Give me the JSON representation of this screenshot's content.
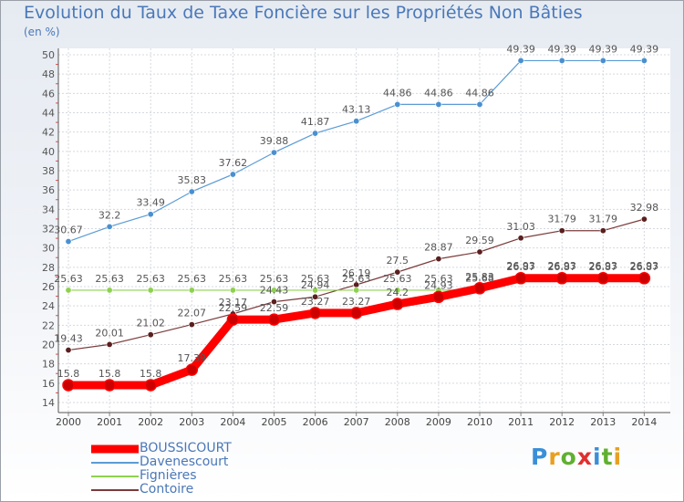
{
  "title": "Evolution du Taux de Taxe Foncière sur les Propriétés Non Bâties",
  "unit_label": "(en %)",
  "logo_text": "Proxiti",
  "chart_data": {
    "type": "line",
    "x": [
      "2000",
      "2001",
      "2002",
      "2003",
      "2004",
      "2005",
      "2006",
      "2007",
      "2008",
      "2009",
      "2010",
      "2011",
      "2012",
      "2013",
      "2014"
    ],
    "ylim": [
      14,
      50
    ],
    "y_ticks": [
      "14",
      "16",
      "18",
      "20",
      "22",
      "24",
      "26",
      "28",
      "30",
      "32",
      "34",
      "36",
      "38",
      "40",
      "42",
      "44",
      "46",
      "48",
      "50"
    ],
    "grid": true,
    "legend_position": "bottom-left",
    "series": [
      {
        "name": "Davenescourt",
        "color": "#5b9bd5",
        "point_color": "#4a90d0",
        "values": [
          30.67,
          32.2,
          33.49,
          35.83,
          37.62,
          39.88,
          41.87,
          43.13,
          44.86,
          44.86,
          44.86,
          49.39,
          49.39,
          49.39,
          49.39
        ],
        "labels": [
          "30.67",
          "32.2",
          "33.49",
          "35.83",
          "37.62",
          "39.88",
          "41.87",
          "43.13",
          "44.86",
          "44.86",
          "44.86",
          "49.39",
          "49.39",
          "49.39",
          "49.39"
        ]
      },
      {
        "name": "Contoire",
        "color": "#7b3b3b",
        "point_color": "#5a1f1f",
        "values": [
          19.43,
          20.01,
          21.02,
          22.07,
          23.17,
          24.43,
          24.94,
          26.19,
          27.5,
          28.87,
          29.59,
          31.03,
          31.79,
          31.79,
          32.98
        ],
        "labels": [
          "19.43",
          "20.01",
          "21.02",
          "22.07",
          "23.17",
          "24.43",
          "24.94",
          "26.19",
          "27.5",
          "28.87",
          "29.59",
          "31.03",
          "31.79",
          "31.79",
          "32.98"
        ]
      },
      {
        "name": "Fignières",
        "color": "#8fd14f",
        "point_color": "#8fd14f",
        "values": [
          25.63,
          25.63,
          25.63,
          25.63,
          25.63,
          25.63,
          25.63,
          25.63,
          25.63,
          25.63,
          25.68,
          26.93,
          26.93,
          26.93,
          26.93
        ],
        "labels": [
          "25.63",
          "25.63",
          "25.63",
          "25.63",
          "25.63",
          "25.63",
          "25.63",
          "25.63",
          "25.63",
          "25.63",
          "25.68",
          "26.93",
          "26.93",
          "26.93",
          "26.93"
        ]
      },
      {
        "name": "BOUSSICOURT",
        "color": "#ff0000",
        "point_color": "#ff0000",
        "values": [
          15.8,
          15.8,
          15.8,
          17.39,
          22.59,
          22.59,
          23.27,
          23.27,
          24.2,
          24.93,
          25.83,
          26.87,
          26.87,
          26.87,
          26.87
        ],
        "labels": [
          "15.8",
          "15.8",
          "15.8",
          "17.39",
          "22.59",
          "22.59",
          "23.27",
          "23.27",
          "24.2",
          "24.93",
          "25.83",
          "26.87",
          "26.87",
          "26.87",
          "26.87"
        ]
      }
    ],
    "legend": [
      "BOUSSICOURT",
      "Davenescourt",
      "Fignières",
      "Contoire"
    ]
  }
}
